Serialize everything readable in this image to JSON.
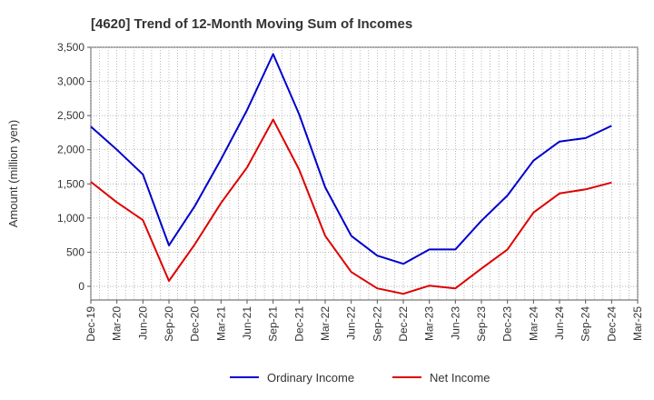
{
  "chart_data": {
    "type": "line",
    "title": "[4620]  Trend of 12-Month Moving Sum of Incomes",
    "xlabel": "",
    "ylabel": "Amount (million yen)",
    "ylim": [
      -200,
      3500
    ],
    "yticks": [
      0,
      500,
      1000,
      1500,
      2000,
      2500,
      3000,
      3500
    ],
    "ytick_labels": [
      "0",
      "500",
      "1,000",
      "1,500",
      "2,000",
      "2,500",
      "3,000",
      "3,500"
    ],
    "grid": true,
    "legend_position": "bottom",
    "categories": [
      "Dec-19",
      "Mar-20",
      "Jun-20",
      "Sep-20",
      "Dec-20",
      "Mar-21",
      "Jun-21",
      "Sep-21",
      "Dec-21",
      "Mar-22",
      "Jun-22",
      "Sep-22",
      "Dec-22",
      "Mar-23",
      "Jun-23",
      "Sep-23",
      "Dec-23",
      "Mar-24",
      "Jun-24",
      "Sep-24",
      "Dec-24",
      "Mar-25"
    ],
    "series": [
      {
        "name": "Ordinary Income",
        "color": "#0000cc",
        "values": [
          2340,
          2000,
          1640,
          600,
          1180,
          1860,
          2580,
          3400,
          2520,
          1450,
          740,
          450,
          330,
          540,
          540,
          960,
          1330,
          1840,
          2120,
          2170,
          2350,
          null
        ]
      },
      {
        "name": "Net Income",
        "color": "#dd0000",
        "values": [
          1530,
          1230,
          970,
          80,
          620,
          1220,
          1740,
          2440,
          1710,
          740,
          210,
          -30,
          -110,
          10,
          -30,
          260,
          540,
          1080,
          1360,
          1420,
          1520,
          null
        ]
      }
    ]
  }
}
